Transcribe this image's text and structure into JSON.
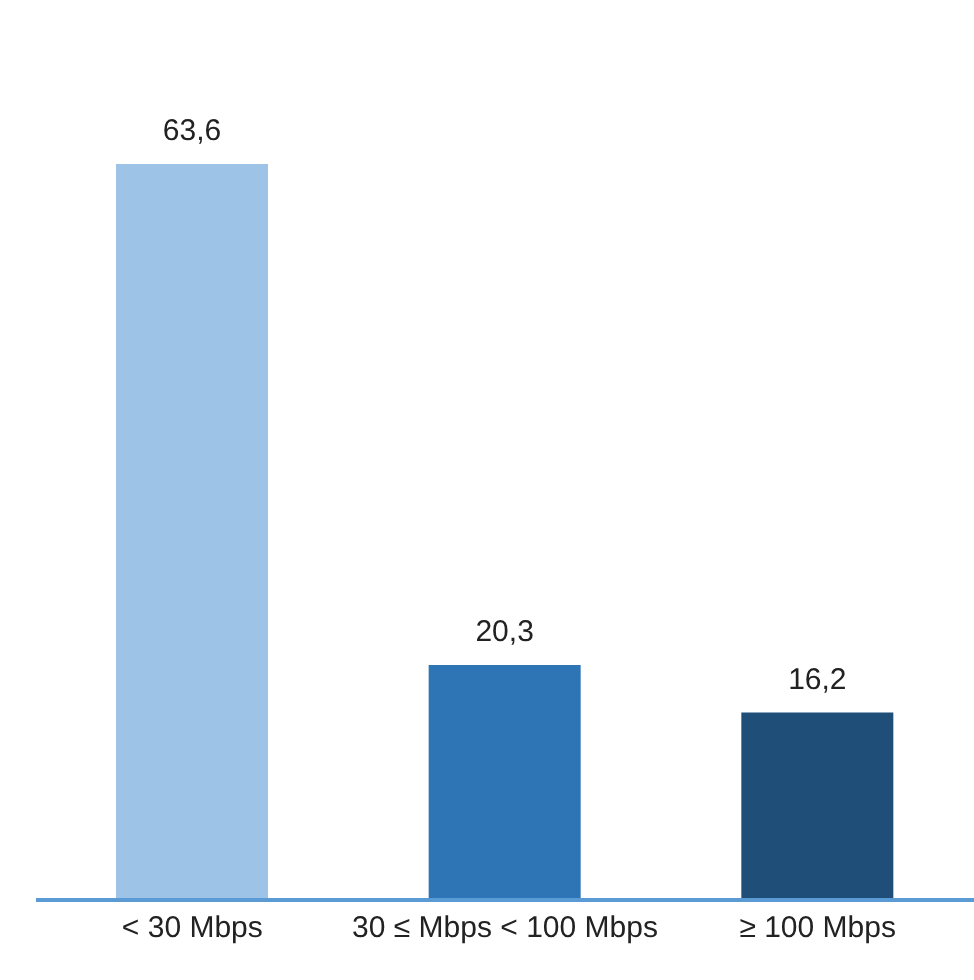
{
  "chart_data": {
    "type": "bar",
    "categories": [
      "< 30 Mbps",
      "30 ≤ Mbps < 100 Mbps",
      "≥ 100 Mbps"
    ],
    "values": [
      63.6,
      20.3,
      16.2
    ],
    "colors": [
      "#9dc3e6",
      "#2e75b6",
      "#1f4e79"
    ],
    "data_labels": true,
    "value_labels": [
      "63,6",
      "20,3",
      "16,2"
    ]
  }
}
